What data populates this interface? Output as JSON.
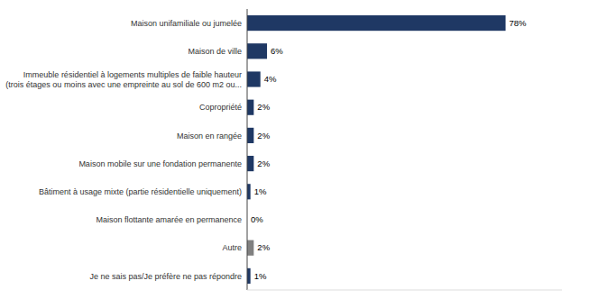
{
  "chart_data": {
    "type": "bar",
    "orientation": "horizontal",
    "categories": [
      "Maison unifamiliale ou jumelée",
      "Maison de ville",
      "Immeuble résidentiel à logements multiples de faible hauteur\n(trois étages ou moins avec une empreinte au sol de 600 m2 ou...",
      "Copropriété",
      "Maison en rangée",
      "Maison mobile sur une fondation permanente",
      "Bâtiment à usage mixte (partie résidentielle uniquement)",
      "Maison flottante amarée en permanence",
      "Autre",
      "Je ne sais pas/Je préfère ne pas répondre"
    ],
    "values": [
      78,
      6,
      4,
      2,
      2,
      2,
      1,
      0,
      2,
      1
    ],
    "value_labels": [
      "78%",
      "6%",
      "4%",
      "2%",
      "2%",
      "2%",
      "1%",
      "0%",
      "2%",
      "1%"
    ],
    "data_labels": true,
    "colors": [
      "#1f3864",
      "#1f3864",
      "#1f3864",
      "#1f3864",
      "#1f3864",
      "#1f3864",
      "#1f3864",
      "#1f3864",
      "#808080",
      "#1f3864"
    ],
    "xlim": [
      0,
      95
    ],
    "tick_labels": "y",
    "grid": false
  }
}
